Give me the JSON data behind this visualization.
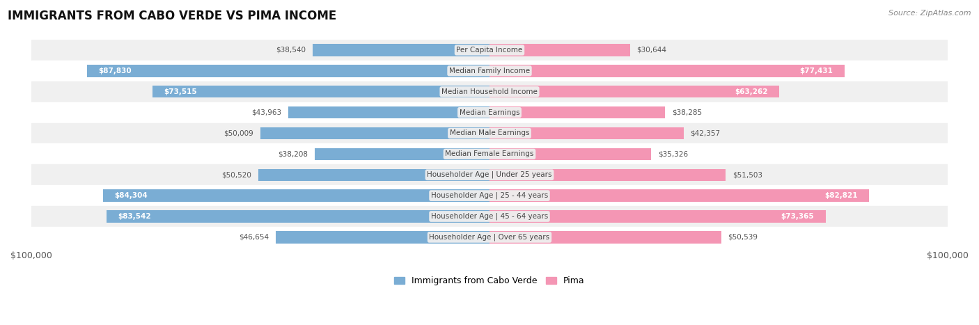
{
  "title": "IMMIGRANTS FROM CABO VERDE VS PIMA INCOME",
  "source": "Source: ZipAtlas.com",
  "categories": [
    "Per Capita Income",
    "Median Family Income",
    "Median Household Income",
    "Median Earnings",
    "Median Male Earnings",
    "Median Female Earnings",
    "Householder Age | Under 25 years",
    "Householder Age | 25 - 44 years",
    "Householder Age | 45 - 64 years",
    "Householder Age | Over 65 years"
  ],
  "cabo_verde_values": [
    38540,
    87830,
    73515,
    43963,
    50009,
    38208,
    50520,
    84304,
    83542,
    46654
  ],
  "pima_values": [
    30644,
    77431,
    63262,
    38285,
    42357,
    35326,
    51503,
    82821,
    73365,
    50539
  ],
  "cabo_verde_color": "#7aadd4",
  "pima_color": "#f496b4",
  "cabo_verde_color_dark": "#5a8fc7",
  "pima_color_dark": "#e8749a",
  "max_value": 100000,
  "bar_height": 0.58,
  "row_bg_colors": [
    "#f0f0f0",
    "#ffffff",
    "#f0f0f0",
    "#ffffff",
    "#f0f0f0",
    "#ffffff",
    "#f0f0f0",
    "#ffffff",
    "#f0f0f0",
    "#ffffff"
  ],
  "label_color_inside": "#ffffff",
  "label_color_outside": "#555555",
  "center_label_bg": "#eeeeee",
  "center_label_color": "#444444",
  "threshold_inside": 60000,
  "legend_label_cabo": "Immigrants from Cabo Verde",
  "legend_label_pima": "Pima",
  "figsize": [
    14.06,
    4.67
  ],
  "dpi": 100
}
